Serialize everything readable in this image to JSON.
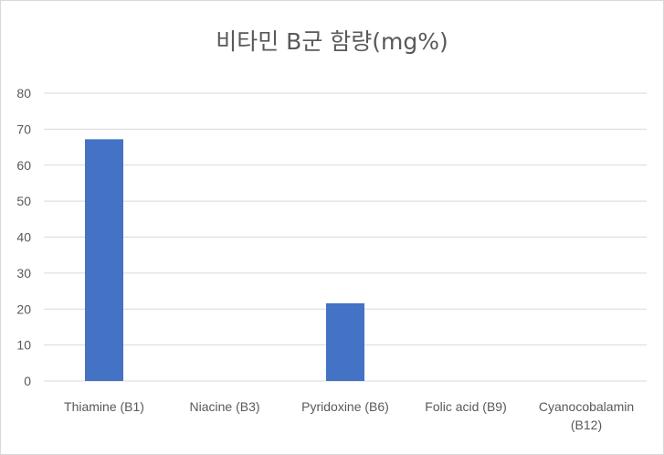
{
  "chart_data": {
    "type": "bar",
    "title": "비타민 B군 함량(mg%)",
    "xlabel": "",
    "ylabel": "",
    "categories": [
      "Thiamine (B1)",
      "Niacine (B3)",
      "Pyridoxine (B6)",
      "Folic acid (B9)",
      "Cyanocobalamin (B12)"
    ],
    "category_lines": [
      [
        "Thiamine (B1)"
      ],
      [
        "Niacine (B3)"
      ],
      [
        "Pyridoxine (B6)"
      ],
      [
        "Folic acid (B9)"
      ],
      [
        "Cyanocobalamin",
        "(B12)"
      ]
    ],
    "values": [
      67.2,
      0,
      21.6,
      0,
      0
    ],
    "ylim": [
      0,
      80
    ],
    "yticks": [
      0,
      10,
      20,
      30,
      40,
      50,
      60,
      70,
      80
    ],
    "grid": true,
    "legend": "none",
    "bar_color": "#4472c4"
  }
}
